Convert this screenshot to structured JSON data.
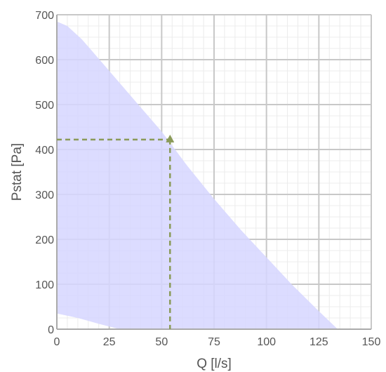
{
  "chart_data": {
    "type": "area",
    "title": "",
    "xlabel": "Q [l/s]",
    "ylabel": "Pstat [Pa]",
    "xlim": [
      0,
      150
    ],
    "ylim": [
      0,
      700
    ],
    "x_ticks": [
      0,
      25,
      50,
      75,
      100,
      125,
      150
    ],
    "y_ticks": [
      0,
      100,
      200,
      300,
      400,
      500,
      600,
      700
    ],
    "x_tick_labels": [
      "0",
      "25",
      "50",
      "75",
      "100",
      "125",
      "150"
    ],
    "y_tick_labels": [
      "0",
      "100",
      "200",
      "300",
      "400",
      "500",
      "600",
      "700"
    ],
    "grid": true,
    "minor_grid": true,
    "operating_range": {
      "upper_curve": [
        {
          "x": 0,
          "y": 685
        },
        {
          "x": 5,
          "y": 675
        },
        {
          "x": 12,
          "y": 645
        },
        {
          "x": 25,
          "y": 575
        },
        {
          "x": 37,
          "y": 510
        },
        {
          "x": 50,
          "y": 440
        },
        {
          "x": 62,
          "y": 365
        },
        {
          "x": 75,
          "y": 290
        },
        {
          "x": 88,
          "y": 220
        },
        {
          "x": 100,
          "y": 160
        },
        {
          "x": 112,
          "y": 100
        },
        {
          "x": 125,
          "y": 40
        },
        {
          "x": 134,
          "y": 0
        }
      ],
      "lower_curve": [
        {
          "x": 0,
          "y": 35
        },
        {
          "x": 10,
          "y": 25
        },
        {
          "x": 20,
          "y": 12
        },
        {
          "x": 30,
          "y": 0
        }
      ],
      "fill_color": "#d6d6ff"
    },
    "operating_point": {
      "x": 54,
      "y": 422
    },
    "marker_color": "#8a9a58",
    "grid_color": "#c8c8c8",
    "minor_grid_color": "#ececec",
    "axis_color": "#aaaaaa",
    "text_color": "#555555"
  }
}
